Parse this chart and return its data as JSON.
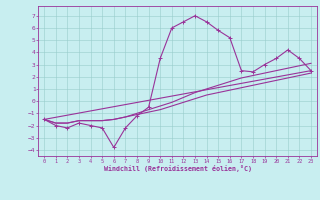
{
  "title": "",
  "xlabel": "Windchill (Refroidissement éolien,°C)",
  "xlim": [
    -0.5,
    23.5
  ],
  "ylim": [
    -4.5,
    7.8
  ],
  "yticks": [
    -4,
    -3,
    -2,
    -1,
    0,
    1,
    2,
    3,
    4,
    5,
    6,
    7
  ],
  "xticks": [
    0,
    1,
    2,
    3,
    4,
    5,
    6,
    7,
    8,
    9,
    10,
    11,
    12,
    13,
    14,
    15,
    16,
    17,
    18,
    19,
    20,
    21,
    22,
    23
  ],
  "bg_color": "#c8eef0",
  "line_color": "#993399",
  "grid_color": "#99cccc",
  "line1_x": [
    0,
    1,
    2,
    3,
    4,
    5,
    6,
    7,
    8,
    9,
    10,
    11,
    12,
    13,
    14,
    15,
    16,
    17,
    18,
    19,
    20,
    21,
    22,
    23
  ],
  "line1_y": [
    -1.5,
    -2.0,
    -2.2,
    -1.8,
    -2.0,
    -2.2,
    -3.8,
    -2.2,
    -1.2,
    -0.5,
    3.5,
    6.0,
    6.5,
    7.0,
    6.5,
    5.8,
    5.2,
    2.5,
    2.4,
    3.0,
    3.5,
    4.2,
    3.5,
    2.5
  ],
  "line2_x": [
    0,
    1,
    2,
    3,
    4,
    5,
    6,
    7,
    8,
    9,
    10,
    11,
    12,
    13,
    14,
    15,
    16,
    17,
    18,
    19,
    20,
    21,
    22,
    23
  ],
  "line2_y": [
    -1.5,
    -1.8,
    -1.8,
    -1.6,
    -1.6,
    -1.6,
    -1.5,
    -1.3,
    -1.1,
    -0.9,
    -0.7,
    -0.4,
    -0.1,
    0.2,
    0.5,
    0.7,
    0.9,
    1.1,
    1.3,
    1.5,
    1.7,
    1.9,
    2.1,
    2.3
  ],
  "line3_x": [
    0,
    1,
    2,
    3,
    4,
    5,
    6,
    7,
    8,
    9,
    10,
    11,
    12,
    13,
    14,
    15,
    16,
    17,
    18,
    19,
    20,
    21,
    22,
    23
  ],
  "line3_y": [
    -1.5,
    -1.8,
    -1.8,
    -1.6,
    -1.6,
    -1.6,
    -1.5,
    -1.3,
    -1.0,
    -0.7,
    -0.4,
    -0.1,
    0.3,
    0.7,
    1.0,
    1.3,
    1.6,
    1.9,
    2.1,
    2.3,
    2.5,
    2.7,
    2.9,
    3.1
  ],
  "line4_x": [
    0,
    23
  ],
  "line4_y": [
    -1.5,
    2.5
  ]
}
